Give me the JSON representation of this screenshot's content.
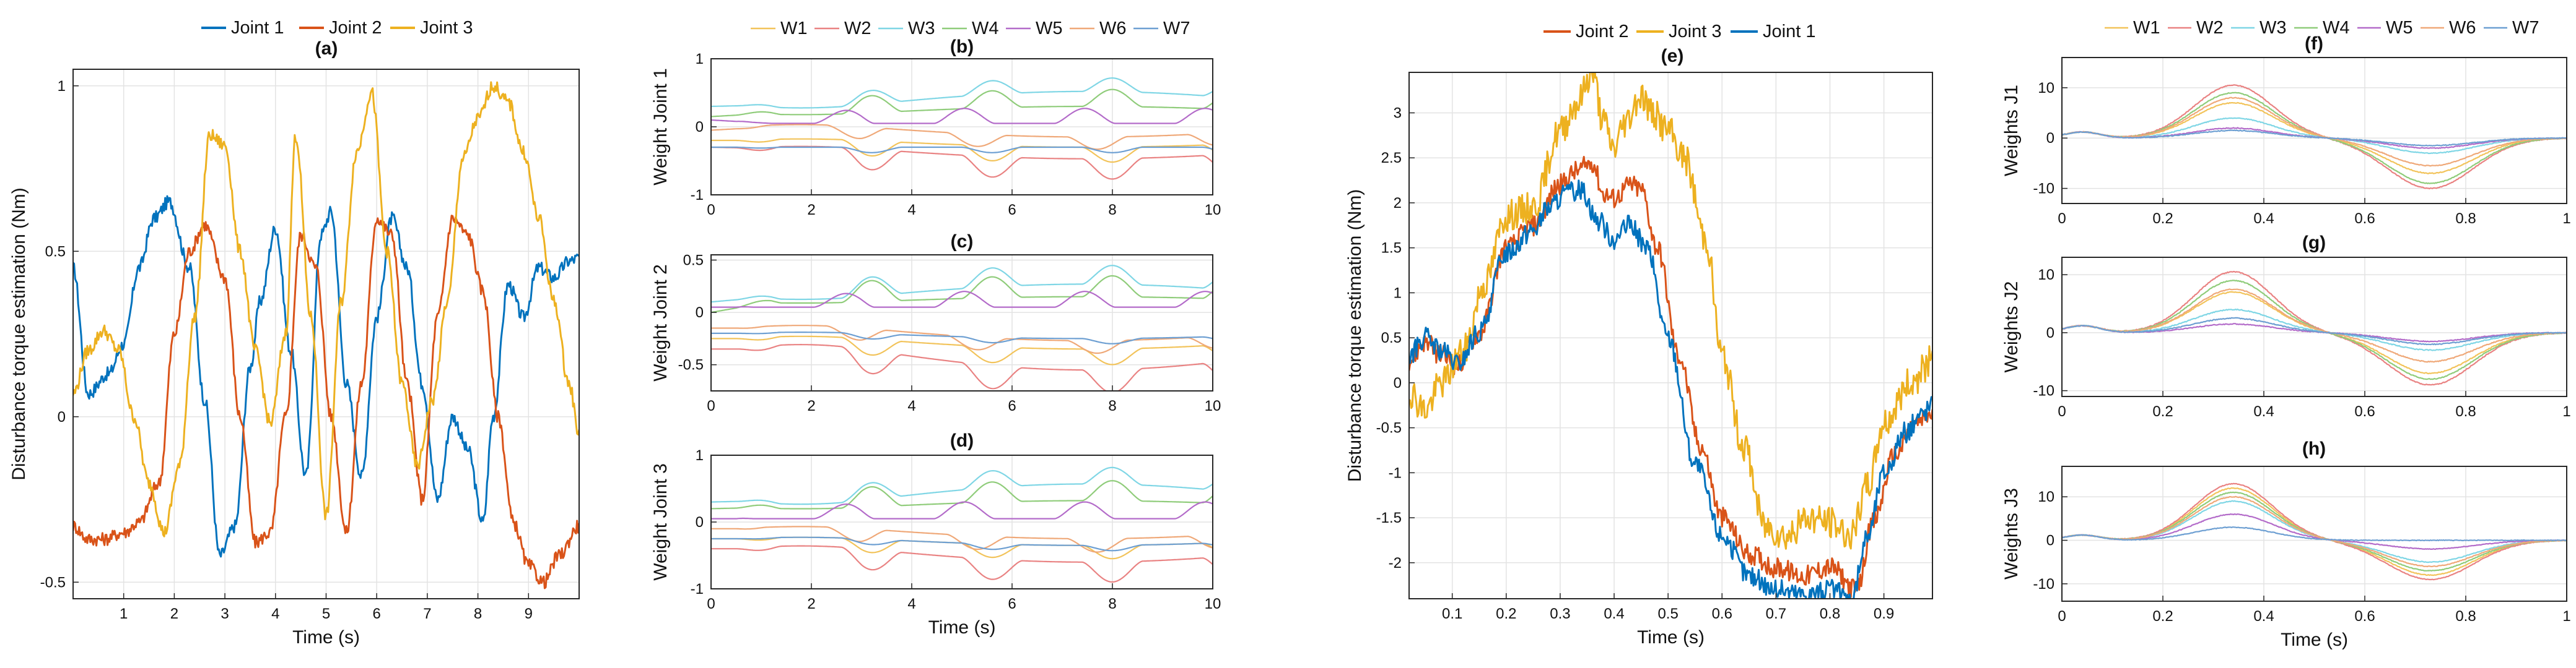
{
  "colors": {
    "joint1": "#0072BD",
    "joint2": "#D95319",
    "joint3": "#EDB120",
    "W1": "#F2C35A",
    "W2": "#E98282",
    "W3": "#7FD6E5",
    "W4": "#8FCC7A",
    "W5": "#B36BC9",
    "W6": "#EFA878",
    "W7": "#6D9FD2"
  },
  "chart_data": [
    {
      "id": "a",
      "type": "line",
      "title": "(a)",
      "xlabel": "Time (s)",
      "ylabel": "Disturbance torque estimation (Nm)",
      "xlim": [
        0,
        10
      ],
      "ylim": [
        -0.55,
        1.05
      ],
      "xticks": [
        1,
        2,
        3,
        4,
        5,
        6,
        7,
        8,
        9
      ],
      "yticks": [
        -0.5,
        0,
        0.5,
        1
      ],
      "ytick_labels": [
        "-0.5",
        "0",
        "0.5",
        "1"
      ],
      "legend": [
        "Joint 1",
        "Joint 2",
        "Joint 3"
      ],
      "series": [
        {
          "name": "Joint 1",
          "color_key": "joint1",
          "noise": 0.025,
          "x": [
            0,
            0.3,
            0.7,
            1.0,
            1.3,
            1.6,
            1.9,
            2.3,
            2.6,
            2.9,
            3.2,
            3.5,
            3.7,
            4.0,
            4.3,
            4.6,
            4.9,
            5.1,
            5.4,
            5.7,
            6.0,
            6.3,
            6.6,
            6.9,
            7.2,
            7.5,
            7.8,
            8.1,
            8.3,
            8.6,
            8.9,
            9.2,
            9.5,
            9.8,
            10.0
          ],
          "y": [
            0.45,
            0.07,
            0.13,
            0.22,
            0.45,
            0.6,
            0.65,
            0.45,
            0.05,
            -0.42,
            -0.33,
            0.15,
            0.35,
            0.57,
            0.2,
            -0.18,
            0.55,
            0.62,
            0.1,
            -0.18,
            0.3,
            0.6,
            0.45,
            0.1,
            -0.25,
            0.0,
            -0.1,
            -0.32,
            0.0,
            0.4,
            0.3,
            0.45,
            0.42,
            0.47,
            0.48
          ]
        },
        {
          "name": "Joint 2",
          "color_key": "joint2",
          "noise": 0.025,
          "x": [
            0,
            0.3,
            0.6,
            1.0,
            1.3,
            1.7,
            2.0,
            2.3,
            2.6,
            3.0,
            3.3,
            3.6,
            3.9,
            4.2,
            4.5,
            4.8,
            5.1,
            5.4,
            5.7,
            6.0,
            6.3,
            6.6,
            6.9,
            7.2,
            7.5,
            7.8,
            8.1,
            8.4,
            8.7,
            9.0,
            9.3,
            9.6,
            10.0
          ],
          "y": [
            -0.33,
            -0.37,
            -0.37,
            -0.35,
            -0.32,
            -0.2,
            0.25,
            0.5,
            0.58,
            0.42,
            0.0,
            -0.38,
            -0.35,
            0.0,
            0.55,
            0.45,
            0.0,
            -0.35,
            0.1,
            0.6,
            0.55,
            0.1,
            -0.25,
            0.3,
            0.6,
            0.55,
            0.38,
            0.0,
            -0.32,
            -0.45,
            -0.5,
            -0.42,
            -0.33
          ]
        },
        {
          "name": "Joint 3",
          "color_key": "joint3",
          "noise": 0.025,
          "x": [
            0,
            0.3,
            0.6,
            0.9,
            1.2,
            1.5,
            1.8,
            2.1,
            2.4,
            2.7,
            3.0,
            3.3,
            3.6,
            3.9,
            4.2,
            4.4,
            4.7,
            5.0,
            5.3,
            5.6,
            5.9,
            6.2,
            6.5,
            6.8,
            7.1,
            7.4,
            7.7,
            8.0,
            8.3,
            8.6,
            8.9,
            9.2,
            9.5,
            9.8,
            10.0
          ],
          "y": [
            0.07,
            0.2,
            0.26,
            0.2,
            0.0,
            -0.2,
            -0.35,
            -0.15,
            0.3,
            0.85,
            0.82,
            0.5,
            0.2,
            -0.02,
            0.25,
            0.85,
            0.3,
            -0.3,
            0.35,
            0.8,
            0.98,
            0.5,
            0.1,
            -0.15,
            0.05,
            0.35,
            0.78,
            0.9,
            1.0,
            0.95,
            0.8,
            0.6,
            0.35,
            0.1,
            -0.05
          ]
        }
      ]
    },
    {
      "id": "b",
      "type": "line",
      "title": "(b)",
      "xlabel": "",
      "ylabel": "Weight Joint 1",
      "xlim": [
        0,
        10
      ],
      "ylim": [
        -1,
        1
      ],
      "xticks": [
        0,
        2,
        4,
        6,
        8,
        10
      ],
      "yticks": [
        -1,
        0,
        1
      ],
      "ytick_labels": [
        "-1",
        "0",
        "1"
      ],
      "legend": [
        "W1",
        "W2",
        "W3",
        "W4",
        "W5",
        "W6",
        "W7"
      ],
      "series": [
        {
          "name": "W1",
          "color_key": "W1",
          "y0": -0.2,
          "base": -0.2,
          "amp": -0.22,
          "trend": -0.1
        },
        {
          "name": "W2",
          "color_key": "W2",
          "y0": -0.3,
          "base": -0.32,
          "amp": -0.3,
          "trend": -0.15
        },
        {
          "name": "W3",
          "color_key": "W3",
          "y0": 0.3,
          "base": 0.32,
          "amp": 0.2,
          "trend": 0.2
        },
        {
          "name": "W4",
          "color_key": "W4",
          "y0": 0.15,
          "base": 0.2,
          "amp": 0.25,
          "trend": 0.1
        },
        {
          "name": "W5",
          "color_key": "W5",
          "y0": 0.1,
          "base": 0.05,
          "amp": 0.22,
          "trend": 0.0,
          "phase": 0.55
        },
        {
          "name": "W6",
          "color_key": "W6",
          "y0": -0.05,
          "base": 0.0,
          "amp": -0.18,
          "trend": -0.15,
          "phase": 0.3
        },
        {
          "name": "W7",
          "color_key": "W7",
          "y0": -0.3,
          "base": -0.3,
          "amp": -0.08,
          "trend": 0.0
        }
      ]
    },
    {
      "id": "c",
      "type": "line",
      "title": "(c)",
      "xlabel": "",
      "ylabel": "Weight Joint 2",
      "xlim": [
        0,
        10
      ],
      "ylim": [
        -0.75,
        0.55
      ],
      "xticks": [
        0,
        2,
        4,
        6,
        8,
        10
      ],
      "yticks": [
        -0.5,
        0,
        0.5
      ],
      "ytick_labels": [
        "-0.5",
        "0",
        "0.5"
      ],
      "series": [
        {
          "name": "W1",
          "color_key": "W1",
          "y0": -0.25,
          "base": -0.25,
          "amp": -0.15,
          "trend": -0.1
        },
        {
          "name": "W2",
          "color_key": "W2",
          "y0": -0.35,
          "base": -0.35,
          "amp": -0.22,
          "trend": -0.2
        },
        {
          "name": "W3",
          "color_key": "W3",
          "y0": 0.1,
          "base": 0.15,
          "amp": 0.18,
          "trend": 0.12
        },
        {
          "name": "W4",
          "color_key": "W4",
          "y0": 0.0,
          "base": 0.1,
          "amp": 0.2,
          "trend": 0.05
        },
        {
          "name": "W5",
          "color_key": "W5",
          "y0": 0.05,
          "base": 0.05,
          "amp": 0.15,
          "trend": 0.0,
          "phase": 0.55
        },
        {
          "name": "W6",
          "color_key": "W6",
          "y0": -0.15,
          "base": -0.15,
          "amp": -0.12,
          "trend": -0.12,
          "phase": 0.3
        },
        {
          "name": "W7",
          "color_key": "W7",
          "y0": -0.2,
          "base": -0.2,
          "amp": -0.05,
          "trend": -0.05
        }
      ]
    },
    {
      "id": "d",
      "type": "line",
      "title": "(d)",
      "xlabel": "Time (s)",
      "ylabel": "Weight Joint 3",
      "xlim": [
        0,
        10
      ],
      "ylim": [
        -1,
        1
      ],
      "xticks": [
        0,
        2,
        4,
        6,
        8,
        10
      ],
      "yticks": [
        -1,
        0,
        1
      ],
      "ytick_labels": [
        "-1",
        "0",
        "1"
      ],
      "series": [
        {
          "name": "W1",
          "color_key": "W1",
          "y0": -0.25,
          "base": -0.25,
          "amp": -0.2,
          "trend": -0.1
        },
        {
          "name": "W2",
          "color_key": "W2",
          "y0": -0.4,
          "base": -0.4,
          "amp": -0.3,
          "trend": -0.2
        },
        {
          "name": "W3",
          "color_key": "W3",
          "y0": 0.3,
          "base": 0.32,
          "amp": 0.25,
          "trend": 0.25
        },
        {
          "name": "W4",
          "color_key": "W4",
          "y0": 0.2,
          "base": 0.22,
          "amp": 0.3,
          "trend": 0.1
        },
        {
          "name": "W5",
          "color_key": "W5",
          "y0": 0.05,
          "base": 0.05,
          "amp": 0.25,
          "trend": 0.0,
          "phase": 0.55
        },
        {
          "name": "W6",
          "color_key": "W6",
          "y0": -0.1,
          "base": -0.1,
          "amp": -0.2,
          "trend": -0.15,
          "phase": 0.3
        },
        {
          "name": "W7",
          "color_key": "W7",
          "y0": -0.25,
          "base": -0.25,
          "amp": -0.08,
          "trend": -0.1
        }
      ]
    },
    {
      "id": "e",
      "type": "line",
      "title": "(e)",
      "xlabel": "Time (s)",
      "ylabel": "Disturbance torque estimation (Nm)",
      "xlim": [
        0.02,
        0.99
      ],
      "ylim": [
        -2.4,
        3.45
      ],
      "xticks": [
        0.1,
        0.2,
        0.3,
        0.4,
        0.5,
        0.6,
        0.7,
        0.8,
        0.9
      ],
      "yticks": [
        -2,
        -1.5,
        -1,
        -0.5,
        0,
        0.5,
        1,
        1.5,
        2,
        2.5,
        3
      ],
      "ytick_labels": [
        "-2",
        "-1.5",
        "-1",
        "-0.5",
        "0",
        "0.5",
        "1",
        "1.5",
        "2",
        "2.5",
        "3"
      ],
      "legend": [
        "Joint 2",
        "Joint 3",
        "Joint 1"
      ],
      "series": [
        {
          "name": "Joint 2",
          "color_key": "joint2",
          "noise": 0.04,
          "x": [
            0.02,
            0.05,
            0.08,
            0.11,
            0.15,
            0.2,
            0.25,
            0.3,
            0.33,
            0.36,
            0.38,
            0.4,
            0.43,
            0.45,
            0.48,
            0.52,
            0.56,
            0.6,
            0.65,
            0.7,
            0.75,
            0.8,
            0.85,
            0.88,
            0.92,
            0.96,
            0.99
          ],
          "y": [
            0.25,
            0.45,
            0.3,
            0.2,
            0.55,
            1.5,
            1.75,
            2.2,
            2.35,
            2.45,
            2.1,
            2.05,
            2.2,
            2.15,
            1.5,
            0.3,
            -0.7,
            -1.5,
            -1.9,
            -2.05,
            -2.15,
            -2.05,
            -2.3,
            -1.55,
            -0.8,
            -0.45,
            -0.35
          ]
        },
        {
          "name": "Joint 3",
          "color_key": "joint3",
          "noise": 0.06,
          "x": [
            0.02,
            0.05,
            0.08,
            0.12,
            0.16,
            0.2,
            0.25,
            0.3,
            0.33,
            0.36,
            0.38,
            0.4,
            0.42,
            0.45,
            0.47,
            0.5,
            0.53,
            0.57,
            0.6,
            0.64,
            0.68,
            0.72,
            0.76,
            0.8,
            0.84,
            0.87,
            0.9,
            0.95,
            0.99
          ],
          "y": [
            -0.1,
            -0.3,
            0.0,
            0.35,
            1.1,
            1.85,
            1.95,
            2.8,
            3.1,
            3.45,
            2.9,
            2.6,
            2.9,
            3.2,
            3.0,
            2.8,
            2.5,
            1.6,
            0.3,
            -0.7,
            -1.6,
            -1.7,
            -1.5,
            -1.55,
            -1.7,
            -1.15,
            -0.45,
            0.0,
            0.25
          ]
        },
        {
          "name": "Joint 1",
          "color_key": "joint1",
          "noise": 0.04,
          "x": [
            0.02,
            0.05,
            0.08,
            0.11,
            0.15,
            0.2,
            0.25,
            0.28,
            0.31,
            0.34,
            0.37,
            0.4,
            0.43,
            0.46,
            0.5,
            0.55,
            0.6,
            0.65,
            0.7,
            0.75,
            0.8,
            0.84,
            0.87,
            0.9,
            0.94,
            0.97,
            0.99
          ],
          "y": [
            0.3,
            0.5,
            0.35,
            0.2,
            0.55,
            1.45,
            1.7,
            1.95,
            2.1,
            2.15,
            1.8,
            1.6,
            1.75,
            1.5,
            0.5,
            -0.9,
            -1.7,
            -2.15,
            -2.3,
            -2.35,
            -2.3,
            -2.4,
            -1.7,
            -1.0,
            -0.55,
            -0.35,
            -0.25
          ]
        }
      ]
    },
    {
      "id": "f",
      "type": "line",
      "title": "(f)",
      "xlabel": "",
      "ylabel": "Weights J1",
      "xlim": [
        0,
        1
      ],
      "ylim": [
        -13,
        16
      ],
      "xticks": [
        0,
        0.2,
        0.4,
        0.6,
        0.8,
        1
      ],
      "xtick_labels": [
        "0",
        "0.2",
        "0.4",
        "0.6",
        "0.8",
        "1"
      ],
      "yticks": [
        -10,
        0,
        10
      ],
      "ytick_labels": [
        "-10",
        "0",
        "10"
      ],
      "legend": [
        "W1",
        "W2",
        "W3",
        "W4",
        "W5",
        "W6",
        "W7"
      ],
      "series": [
        {
          "name": "W1",
          "color_key": "W1",
          "peak": 7,
          "trough": -7
        },
        {
          "name": "W2",
          "color_key": "W2",
          "peak": 10.5,
          "trough": -10
        },
        {
          "name": "W3",
          "color_key": "W3",
          "peak": 4,
          "trough": -3
        },
        {
          "name": "W4",
          "color_key": "W4",
          "peak": 9,
          "trough": -9
        },
        {
          "name": "W5",
          "color_key": "W5",
          "peak": 2,
          "trough": -2
        },
        {
          "name": "W6",
          "color_key": "W6",
          "peak": 8,
          "trough": -5.5
        },
        {
          "name": "W7",
          "color_key": "W7",
          "peak": 1.5,
          "trough": -1.5
        }
      ]
    },
    {
      "id": "g",
      "type": "line",
      "title": "(g)",
      "xlabel": "",
      "ylabel": "Weights J2",
      "xlim": [
        0,
        1
      ],
      "ylim": [
        -11,
        13
      ],
      "xticks": [
        0,
        0.2,
        0.4,
        0.6,
        0.8,
        1
      ],
      "xtick_labels": [
        "0",
        "0.2",
        "0.4",
        "0.6",
        "0.8",
        "1"
      ],
      "yticks": [
        -10,
        0,
        10
      ],
      "ytick_labels": [
        "-10",
        "0",
        "10"
      ],
      "series": [
        {
          "name": "W1",
          "color_key": "W1",
          "peak": 7,
          "trough": -7
        },
        {
          "name": "W2",
          "color_key": "W2",
          "peak": 10.5,
          "trough": -9
        },
        {
          "name": "W3",
          "color_key": "W3",
          "peak": 4,
          "trough": -3
        },
        {
          "name": "W4",
          "color_key": "W4",
          "peak": 9,
          "trough": -8
        },
        {
          "name": "W5",
          "color_key": "W5",
          "peak": 1.5,
          "trough": -1.5
        },
        {
          "name": "W6",
          "color_key": "W6",
          "peak": 7.5,
          "trough": -5
        },
        {
          "name": "W7",
          "color_key": "W7",
          "peak": 2.5,
          "trough": -2
        }
      ]
    },
    {
      "id": "h",
      "type": "line",
      "title": "(h)",
      "xlabel": "Time (s)",
      "ylabel": "Weights J3",
      "xlim": [
        0,
        1
      ],
      "ylim": [
        -14,
        17
      ],
      "xticks": [
        0,
        0.2,
        0.4,
        0.6,
        0.8,
        1
      ],
      "xtick_labels": [
        "0",
        "0.2",
        "0.4",
        "0.6",
        "0.8",
        "1"
      ],
      "yticks": [
        -10,
        0,
        10
      ],
      "ytick_labels": [
        "-10",
        "0",
        "10"
      ],
      "series": [
        {
          "name": "W1",
          "color_key": "W1",
          "peak": 12,
          "trough": -8
        },
        {
          "name": "W2",
          "color_key": "W2",
          "peak": 13,
          "trough": -9
        },
        {
          "name": "W3",
          "color_key": "W3",
          "peak": 9,
          "trough": -5
        },
        {
          "name": "W4",
          "color_key": "W4",
          "peak": 11,
          "trough": -7
        },
        {
          "name": "W5",
          "color_key": "W5",
          "peak": 6,
          "trough": -2
        },
        {
          "name": "W6",
          "color_key": "W6",
          "peak": 10,
          "trough": -6
        },
        {
          "name": "W7",
          "color_key": "W7",
          "peak": 3,
          "trough": 0
        }
      ]
    }
  ]
}
